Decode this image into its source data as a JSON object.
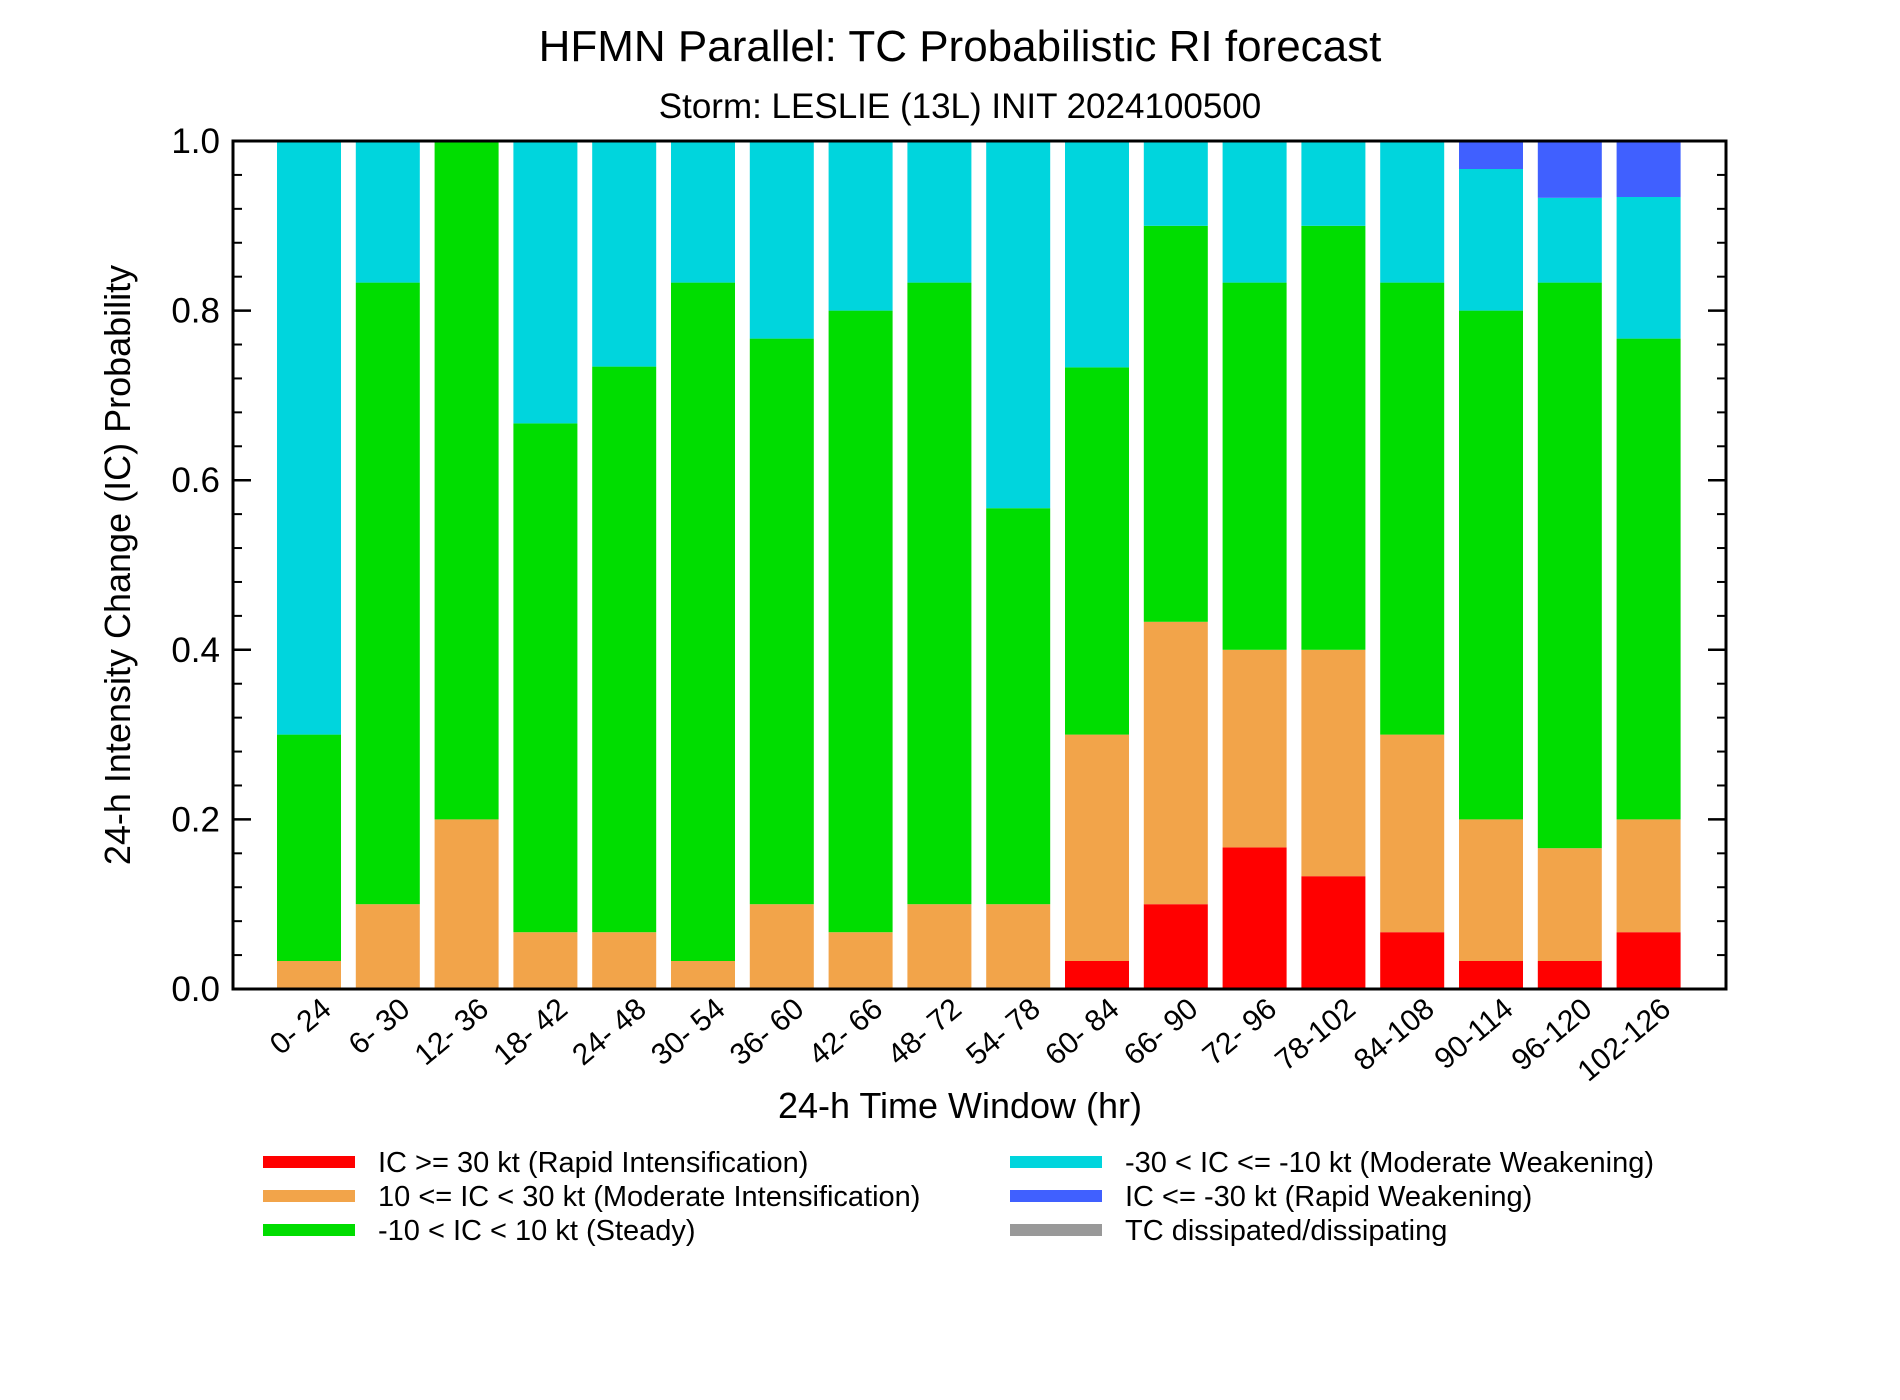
{
  "chart_data": {
    "type": "bar",
    "stacked": true,
    "title": "HFMN Parallel: TC Probabilistic RI forecast",
    "subtitle": "Storm: LESLIE (13L) INIT 2024100500",
    "xlabel": "24-h Time Window (hr)",
    "ylabel": "24-h Intensity Change (IC) Probability",
    "ylim": [
      0,
      1
    ],
    "yticks": [
      "0.0",
      "0.2",
      "0.4",
      "0.6",
      "0.8",
      "1.0"
    ],
    "grid": false,
    "legend_position": "bottom",
    "categories": [
      "0- 24",
      "6- 30",
      "12- 36",
      "18- 42",
      "24- 48",
      "30- 54",
      "36- 60",
      "42- 66",
      "48- 72",
      "54- 78",
      "60- 84",
      "66- 90",
      "72- 96",
      "78-102",
      "84-108",
      "90-114",
      "96-120",
      "102-126"
    ],
    "series": [
      {
        "name": "IC >= 30 kt (Rapid Intensification)",
        "color": "#ff0000",
        "values": [
          0,
          0,
          0,
          0,
          0,
          0,
          0,
          0,
          0,
          0,
          0.033,
          0.1,
          0.167,
          0.133,
          0.067,
          0.033,
          0.033,
          0.067
        ]
      },
      {
        "name": "10 <= IC < 30 kt (Moderate Intensification)",
        "color": "#f2a44a",
        "values": [
          0.033,
          0.1,
          0.2,
          0.067,
          0.067,
          0.033,
          0.1,
          0.067,
          0.1,
          0.1,
          0.267,
          0.333,
          0.233,
          0.267,
          0.233,
          0.167,
          0.133,
          0.133
        ]
      },
      {
        "name": "-10 < IC < 10 kt (Steady)",
        "color": "#00dd00",
        "values": [
          0.267,
          0.733,
          0.8,
          0.6,
          0.667,
          0.8,
          0.667,
          0.733,
          0.733,
          0.467,
          0.433,
          0.467,
          0.433,
          0.5,
          0.533,
          0.6,
          0.667,
          0.567
        ]
      },
      {
        "name": "-30 < IC <= -10 kt (Moderate Weakening)",
        "color": "#00d5dd",
        "values": [
          0.7,
          0.167,
          0,
          0.333,
          0.267,
          0.167,
          0.233,
          0.2,
          0.167,
          0.433,
          0.267,
          0.1,
          0.167,
          0.1,
          0.167,
          0.167,
          0.1,
          0.167
        ]
      },
      {
        "name": "IC <= -30 kt (Rapid Weakening)",
        "color": "#4060ff",
        "values": [
          0,
          0,
          0,
          0,
          0,
          0,
          0,
          0,
          0,
          0,
          0,
          0,
          0,
          0,
          0,
          0.033,
          0.067,
          0.067
        ]
      },
      {
        "name": "TC dissipated/dissipating",
        "color": "#999999",
        "values": [
          0,
          0,
          0,
          0,
          0,
          0,
          0,
          0,
          0,
          0,
          0,
          0,
          0,
          0,
          0,
          0,
          0,
          0
        ]
      }
    ]
  }
}
